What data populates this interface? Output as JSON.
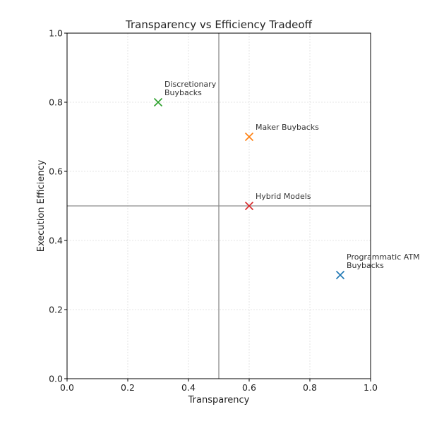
{
  "chart_data": {
    "type": "scatter",
    "title": "Transparency vs Efficiency Tradeoff",
    "xlabel": "Transparency",
    "ylabel": "Execution Efficiency",
    "xlim": [
      0.0,
      1.0
    ],
    "ylim": [
      0.0,
      1.0
    ],
    "x_ticks": [
      "0.0",
      "0.2",
      "0.4",
      "0.6",
      "0.8",
      "1.0"
    ],
    "y_ticks": [
      "0.0",
      "0.2",
      "0.4",
      "0.6",
      "0.8",
      "1.0"
    ],
    "grid": true,
    "marker": "x",
    "reference_lines": {
      "x": 0.5,
      "y": 0.5
    },
    "points": [
      {
        "label": [
          "Programmatic ATM",
          "Buybacks"
        ],
        "x": 0.9,
        "y": 0.3,
        "color": "#1f77b4"
      },
      {
        "label": [
          "Maker Buybacks"
        ],
        "x": 0.6,
        "y": 0.7,
        "color": "#ff7f0e"
      },
      {
        "label": [
          "Discretionary",
          "Buybacks"
        ],
        "x": 0.3,
        "y": 0.8,
        "color": "#2ca02c"
      },
      {
        "label": [
          "Hybrid Models"
        ],
        "x": 0.6,
        "y": 0.5,
        "color": "#d62728"
      }
    ]
  }
}
